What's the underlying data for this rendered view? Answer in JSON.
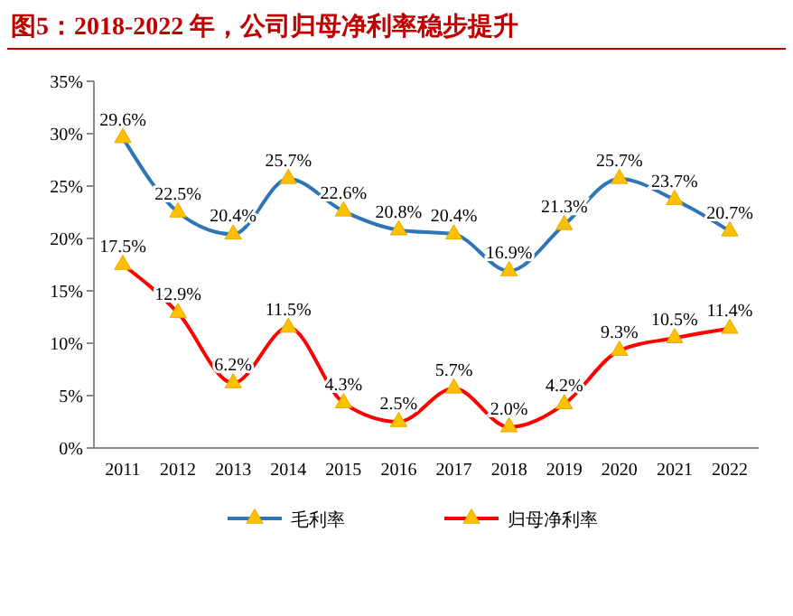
{
  "chart_data": {
    "type": "line",
    "title": "图5：2018-2022 年，公司归母净利率稳步提升",
    "categories": [
      "2011",
      "2012",
      "2013",
      "2014",
      "2015",
      "2016",
      "2017",
      "2018",
      "2019",
      "2020",
      "2021",
      "2022"
    ],
    "series": [
      {
        "name": "毛利率",
        "color": "#2e75b6",
        "values": [
          29.6,
          22.5,
          20.4,
          25.7,
          22.6,
          20.8,
          20.4,
          16.9,
          21.3,
          25.7,
          23.7,
          20.7
        ],
        "value_labels": [
          "29.6%",
          "22.5%",
          "20.4%",
          "25.7%",
          "22.6%",
          "20.8%",
          "20.4%",
          "16.9%",
          "21.3%",
          "25.7%",
          "23.7%",
          "20.7%"
        ]
      },
      {
        "name": "归母净利率",
        "color": "#ff0000",
        "values": [
          17.5,
          12.9,
          6.2,
          11.5,
          4.3,
          2.5,
          5.7,
          2.0,
          4.2,
          9.3,
          10.5,
          11.4
        ],
        "value_labels": [
          "17.5%",
          "12.9%",
          "6.2%",
          "11.5%",
          "4.3%",
          "2.5%",
          "5.7%",
          "2.0%",
          "4.2%",
          "9.3%",
          "10.5%",
          "11.4%"
        ]
      }
    ],
    "ylim": [
      0,
      35
    ],
    "yticks": [
      {
        "value": 0,
        "label": "0%"
      },
      {
        "value": 5,
        "label": "5%"
      },
      {
        "value": 10,
        "label": "10%"
      },
      {
        "value": 15,
        "label": "15%"
      },
      {
        "value": 20,
        "label": "20%"
      },
      {
        "value": 25,
        "label": "25%"
      },
      {
        "value": 30,
        "label": "30%"
      },
      {
        "value": 35,
        "label": "35%"
      }
    ],
    "marker": "triangle",
    "legend": "bottom",
    "grid": false
  }
}
